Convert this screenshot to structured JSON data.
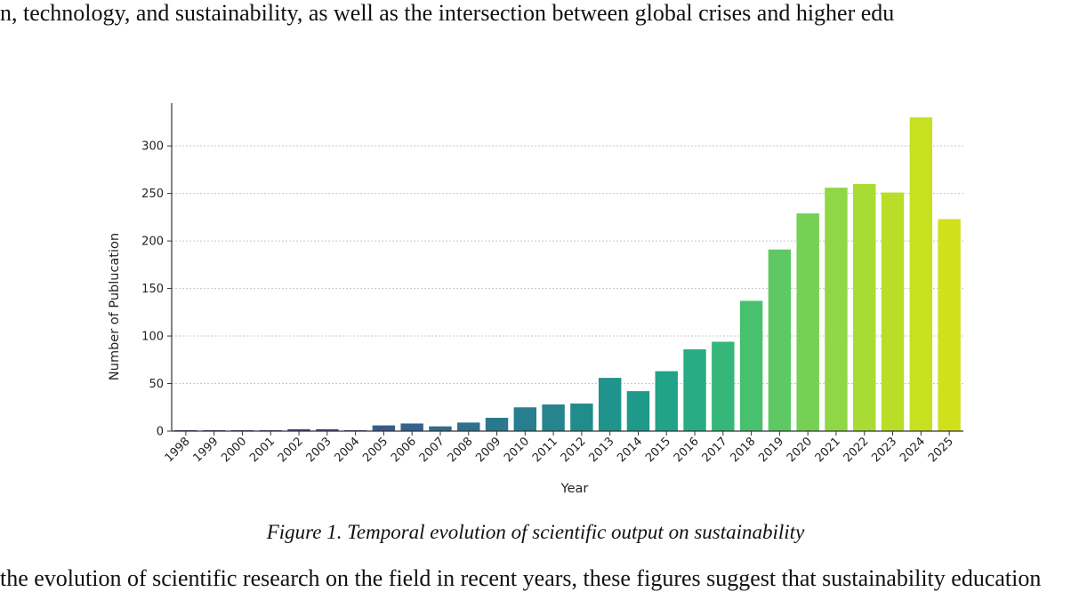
{
  "document": {
    "top_text": "n, technology, and sustainability, as well as the intersection between global crises and higher edu",
    "bottom_text": "the evolution of scientific research on the field in recent years, these figures suggest that sustainability education",
    "caption": "Figure 1. Temporal evolution of  scientific output on sustainability"
  },
  "chart_data": {
    "type": "bar",
    "title": "",
    "xlabel": "Year",
    "ylabel": "Number of Publucation",
    "categories": [
      "1998",
      "1999",
      "2000",
      "2001",
      "2002",
      "2003",
      "2004",
      "2005",
      "2006",
      "2007",
      "2008",
      "2009",
      "2010",
      "2011",
      "2012",
      "2013",
      "2014",
      "2015",
      "2016",
      "2017",
      "2018",
      "2019",
      "2020",
      "2021",
      "2022",
      "2023",
      "2024",
      "2025"
    ],
    "values": [
      1,
      1,
      1,
      1,
      2,
      2,
      1,
      6,
      8,
      5,
      9,
      14,
      25,
      28,
      29,
      56,
      42,
      63,
      86,
      94,
      137,
      191,
      229,
      256,
      260,
      251,
      330,
      223
    ],
    "ylim": [
      0,
      345
    ],
    "yticks": [
      0,
      50,
      100,
      150,
      200,
      250,
      300
    ],
    "grid": "horizontal dotted",
    "colors": [
      "#472d7b",
      "#46307e",
      "#453581",
      "#423a84",
      "#403f86",
      "#3d4488",
      "#3a4989",
      "#375a8c",
      "#33638d",
      "#306b8e",
      "#2d718e",
      "#2a788e",
      "#277e8e",
      "#25848e",
      "#228c8d",
      "#1f938c",
      "#1f998a",
      "#20a386",
      "#27ad81",
      "#35b779",
      "#47c16e",
      "#5ec962",
      "#75d054",
      "#8fd744",
      "#a8db34",
      "#bade28",
      "#c7e020",
      "#d0e11c"
    ]
  }
}
